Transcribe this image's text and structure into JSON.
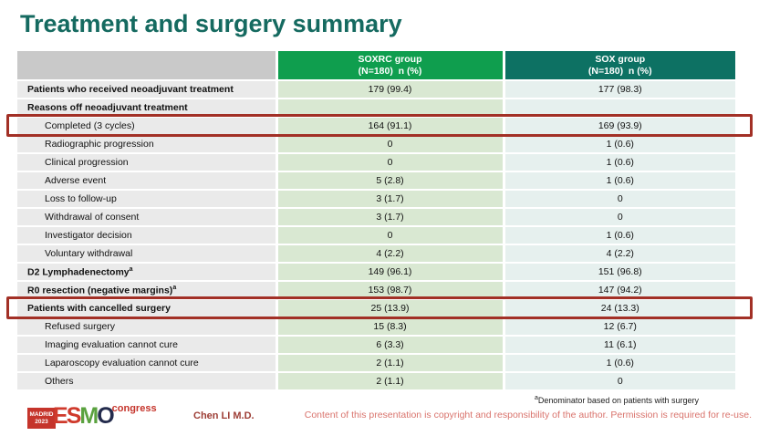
{
  "slide": {
    "title": "Treatment and surgery summary",
    "presenter": "Chen LI M.D.",
    "footnote_sup": "a",
    "footnote": "Denominator based on patients with surgery",
    "copyright": "Content of this presentation is copyright and responsibility of the author. Permission is required for re-use.",
    "logo": {
      "city": "MADRID",
      "year": "2023",
      "letters": [
        "E",
        "S",
        "M",
        "O"
      ],
      "suffix": "congress"
    }
  },
  "table": {
    "header": {
      "col1": {
        "title": "SOXRC group",
        "subtitle": "(N=180)  n (%)"
      },
      "col2": {
        "title": "SOX group",
        "subtitle": "(N=180)  n (%)"
      }
    },
    "rows": [
      {
        "label": "Patients who received neoadjuvant treatment",
        "soxrc": "179 (99.4)",
        "sox": "177 (98.3)",
        "bold": true,
        "indent": false,
        "highlight": false
      },
      {
        "label": "Reasons off neoadjuvant treatment",
        "soxrc": "",
        "sox": "",
        "bold": true,
        "indent": false,
        "highlight": false
      },
      {
        "label": "Completed (3 cycles)",
        "soxrc": "164 (91.1)",
        "sox": "169 (93.9)",
        "bold": false,
        "indent": true,
        "highlight": true
      },
      {
        "label": "Radiographic progression",
        "soxrc": "0",
        "sox": "1 (0.6)",
        "bold": false,
        "indent": true,
        "highlight": false
      },
      {
        "label": "Clinical progression",
        "soxrc": "0",
        "sox": "1 (0.6)",
        "bold": false,
        "indent": true,
        "highlight": false
      },
      {
        "label": "Adverse event",
        "soxrc": "5 (2.8)",
        "sox": "1 (0.6)",
        "bold": false,
        "indent": true,
        "highlight": false
      },
      {
        "label": "Loss to follow-up",
        "soxrc": "3 (1.7)",
        "sox": "0",
        "bold": false,
        "indent": true,
        "highlight": false
      },
      {
        "label": "Withdrawal of consent",
        "soxrc": "3 (1.7)",
        "sox": "0",
        "bold": false,
        "indent": true,
        "highlight": false
      },
      {
        "label": "Investigator decision",
        "soxrc": "0",
        "sox": "1 (0.6)",
        "bold": false,
        "indent": true,
        "highlight": false
      },
      {
        "label": "Voluntary withdrawal",
        "soxrc": "4 (2.2)",
        "sox": "4 (2.2)",
        "bold": false,
        "indent": true,
        "highlight": false
      },
      {
        "label": "D2 Lymphadenectomy",
        "sup": "a",
        "soxrc": "149 (96.1)",
        "sox": "151 (96.8)",
        "bold": true,
        "indent": false,
        "highlight": false
      },
      {
        "label": "R0 resection (negative margins)",
        "sup": "a",
        "soxrc": "153 (98.7)",
        "sox": "147 (94.2)",
        "bold": true,
        "indent": false,
        "highlight": false
      },
      {
        "label": "Patients with cancelled surgery",
        "soxrc": "25 (13.9)",
        "sox": "24 (13.3)",
        "bold": true,
        "indent": false,
        "highlight": true
      },
      {
        "label": "Refused surgery",
        "soxrc": "15 (8.3)",
        "sox": "12 (6.7)",
        "bold": false,
        "indent": true,
        "highlight": false
      },
      {
        "label": "Imaging evaluation cannot cure",
        "soxrc": "6 (3.3)",
        "sox": "11 (6.1)",
        "bold": false,
        "indent": true,
        "highlight": false
      },
      {
        "label": "Laparoscopy evaluation cannot cure",
        "soxrc": "2 (1.1)",
        "sox": "1 (0.6)",
        "bold": false,
        "indent": true,
        "highlight": false
      },
      {
        "label": "Others",
        "soxrc": "2 (1.1)",
        "sox": "0",
        "bold": false,
        "indent": true,
        "highlight": false
      }
    ]
  },
  "colors": {
    "title_text": "#156a60",
    "soxrc_header": "#0f9e4e",
    "sox_header": "#0d7163",
    "label_header": "#c9c9c9",
    "label_cell": "#eaeaea",
    "soxrc_cell": "#d9e8d2",
    "sox_cell": "#e6f0ee",
    "highlight_border": "#a23026",
    "esmo_red": "#c5342b",
    "esmo_green": "#5aa23f",
    "esmo_navy": "#232b4c",
    "copyright_text": "#d9736c",
    "presenter_text": "#9d3d35"
  }
}
